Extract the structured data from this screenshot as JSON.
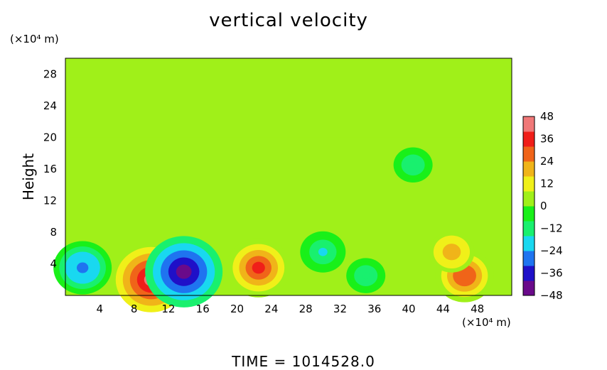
{
  "chart_data": {
    "type": "heatmap",
    "title": "vertical velocity",
    "xlabel": "",
    "ylabel": "Height",
    "x_unit": "(×10⁴ m)",
    "y_unit": "(×10⁴ m)",
    "xlim": [
      0,
      52
    ],
    "ylim": [
      0,
      30
    ],
    "xticks": [
      4,
      8,
      12,
      16,
      20,
      24,
      28,
      32,
      36,
      40,
      44,
      48
    ],
    "yticks": [
      4,
      8,
      12,
      16,
      20,
      24,
      28
    ],
    "colorbar": {
      "min": -48,
      "max": 48,
      "ticks": [
        48,
        36,
        24,
        12,
        0,
        -12,
        -24,
        -36,
        -48
      ],
      "labels": [
        "48",
        "36",
        "24",
        "12",
        "0",
        "−12",
        "−24",
        "−36",
        "−48"
      ],
      "colors": [
        "#6a0a8a",
        "#1f10c8",
        "#1f74f0",
        "#19d8f0",
        "#19f06e",
        "#19f019",
        "#a0f019",
        "#f0f019",
        "#f0b419",
        "#f06419",
        "#f01e19",
        "#f07878"
      ]
    },
    "features": [
      {
        "x": 2,
        "y": 3.5,
        "value": -30
      },
      {
        "x": 10,
        "y": 2.0,
        "value": 40
      },
      {
        "x": 13.8,
        "y": 3.0,
        "value": -45
      },
      {
        "x": 22.5,
        "y": 3.5,
        "value": 35
      },
      {
        "x": 30,
        "y": 5.5,
        "value": -20
      },
      {
        "x": 35,
        "y": 2.5,
        "value": -15
      },
      {
        "x": 40.5,
        "y": 16.5,
        "value": -15
      },
      {
        "x": 46.5,
        "y": 2.5,
        "value": 30
      },
      {
        "x": 45,
        "y": 5.5,
        "value": 20
      }
    ]
  },
  "footer": {
    "time_label": "TIME  =  1014528.0"
  }
}
